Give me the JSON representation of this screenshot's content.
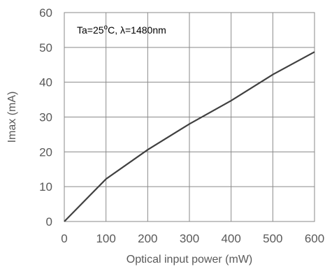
{
  "chart_data": {
    "type": "line",
    "title": "",
    "xlabel": "Optical input power (mW)",
    "ylabel": "Imax (mA)",
    "xlim": [
      0,
      600
    ],
    "ylim": [
      0,
      60
    ],
    "xticks": [
      0,
      100,
      200,
      300,
      400,
      500,
      600
    ],
    "yticks": [
      0,
      10,
      20,
      30,
      40,
      50,
      60
    ],
    "grid": true,
    "legend": "none",
    "annotation": {
      "prefix": "Ta=25",
      "superscript": "o",
      "suffix": "C, λ=1480nm",
      "placement": "top-left"
    },
    "series": [
      {
        "color": "#404040",
        "x": [
          0,
          100,
          200,
          300,
          400,
          500,
          600
        ],
        "y": [
          0,
          12.2,
          20.6,
          28,
          34.7,
          42.2,
          48.7
        ]
      }
    ]
  }
}
